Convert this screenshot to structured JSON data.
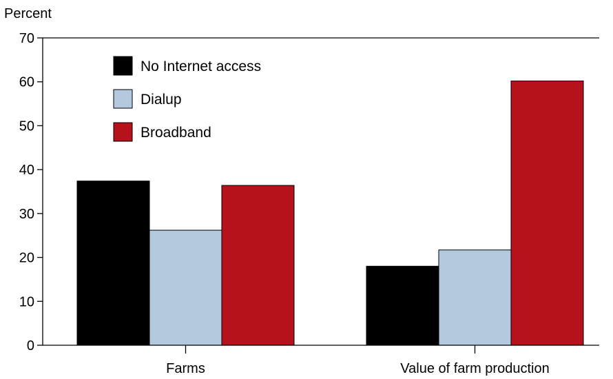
{
  "chart_data": {
    "type": "bar",
    "title": "",
    "xlabel": "",
    "ylabel": "Percent",
    "ylim": [
      0,
      70
    ],
    "yticks": [
      0,
      10,
      20,
      30,
      40,
      50,
      60,
      70
    ],
    "grid": false,
    "legend_position": "top-left",
    "categories": [
      "Farms",
      "Value of farm production"
    ],
    "series": [
      {
        "name": "No Internet access",
        "color": "#000000",
        "values": [
          37.4,
          18.0
        ]
      },
      {
        "name": "Dialup",
        "color": "#b3c9de",
        "values": [
          26.2,
          21.7
        ]
      },
      {
        "name": "Broadband",
        "color": "#b5121b",
        "values": [
          36.4,
          60.2
        ]
      }
    ]
  }
}
